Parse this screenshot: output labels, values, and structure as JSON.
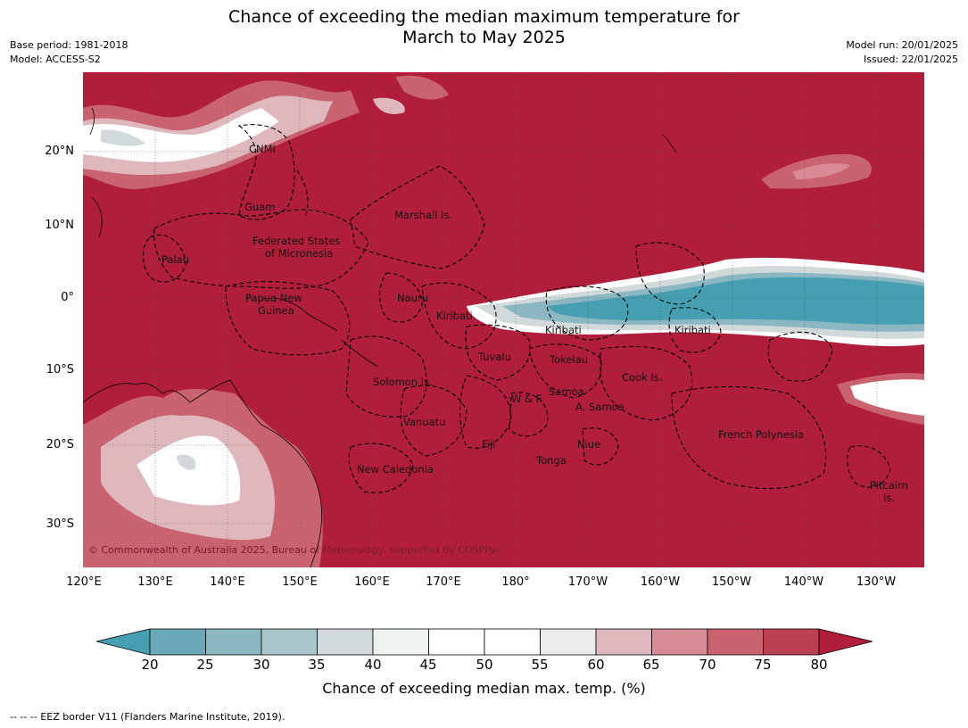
{
  "title_line1": "Chance of exceeding the median maximum temperature for",
  "title_line2": "March to May 2025",
  "meta": {
    "base_period": "Base period: 1981-2018",
    "model": "Model: ACCESS-S2",
    "model_run": "Model run: 20/01/2025",
    "issued": "Issued: 22/01/2025"
  },
  "map": {
    "lat_labels": [
      "20°N",
      "10°N",
      "0°",
      "10°S",
      "20°S",
      "30°S"
    ],
    "lon_labels": [
      "120°E",
      "130°E",
      "140°E",
      "150°E",
      "160°E",
      "170°E",
      "180°",
      "170°W",
      "160°W",
      "150°W",
      "140°W",
      "130°W"
    ],
    "places": {
      "cnmi": "CNMI",
      "guam": "Guam",
      "marshall": "Marshall Is.",
      "fsm_line1": "Federated States",
      "fsm_line2": "of Micronesia",
      "palau": "Palau",
      "png_line1": "Papua New",
      "png_line2": "Guinea",
      "nauru": "Nauru",
      "kiribati_west": "Kiribati",
      "kiribati_central": "Kiribati",
      "kiribati_east": "Kiribati",
      "tuvalu": "Tuvalu",
      "tokelau": "Tokelau",
      "cook": "Cook Is.",
      "solomon": "Solomon Is.",
      "samoa": "Samoa",
      "wf": "W & F",
      "amsamoa": "A. Samoa",
      "vanuatu": "Vanuatu",
      "fiji": "Fiji",
      "niue": "Niue",
      "tonga": "Tonga",
      "french_polynesia": "French Polynesia",
      "new_caledonia": "New Caledonia",
      "pitcairn_line1": "Pitcairn",
      "pitcairn_line2": "Is."
    },
    "copyright": "© Commonwealth of Australia 2025, Bureau of Meteorology, supported by COSPPac"
  },
  "colorbar": {
    "ticks": [
      "20",
      "25",
      "30",
      "35",
      "40",
      "45",
      "50",
      "55",
      "60",
      "65",
      "70",
      "75",
      "80"
    ],
    "colors": {
      "below_20": "#459fb0",
      "20_25": "#6aa8b9",
      "25_30": "#8bb7c2",
      "30_35": "#a9c6cb",
      "35_40": "#d1d9db",
      "40_45": "#eef2f2",
      "45_50": "#ffffff",
      "50_55": "#ffffff",
      "55_60": "#ececec",
      "60_65": "#dfb8be",
      "65_70": "#d88a95",
      "70_75": "#c9636f",
      "75_80": "#bc3f52",
      "above_80": "#b01e3b"
    },
    "label": "Chance of exceeding median max. temp. (%)"
  },
  "footnote": "--  --  -- EEZ border V11 (Flanders Marine Institute, 2019)."
}
